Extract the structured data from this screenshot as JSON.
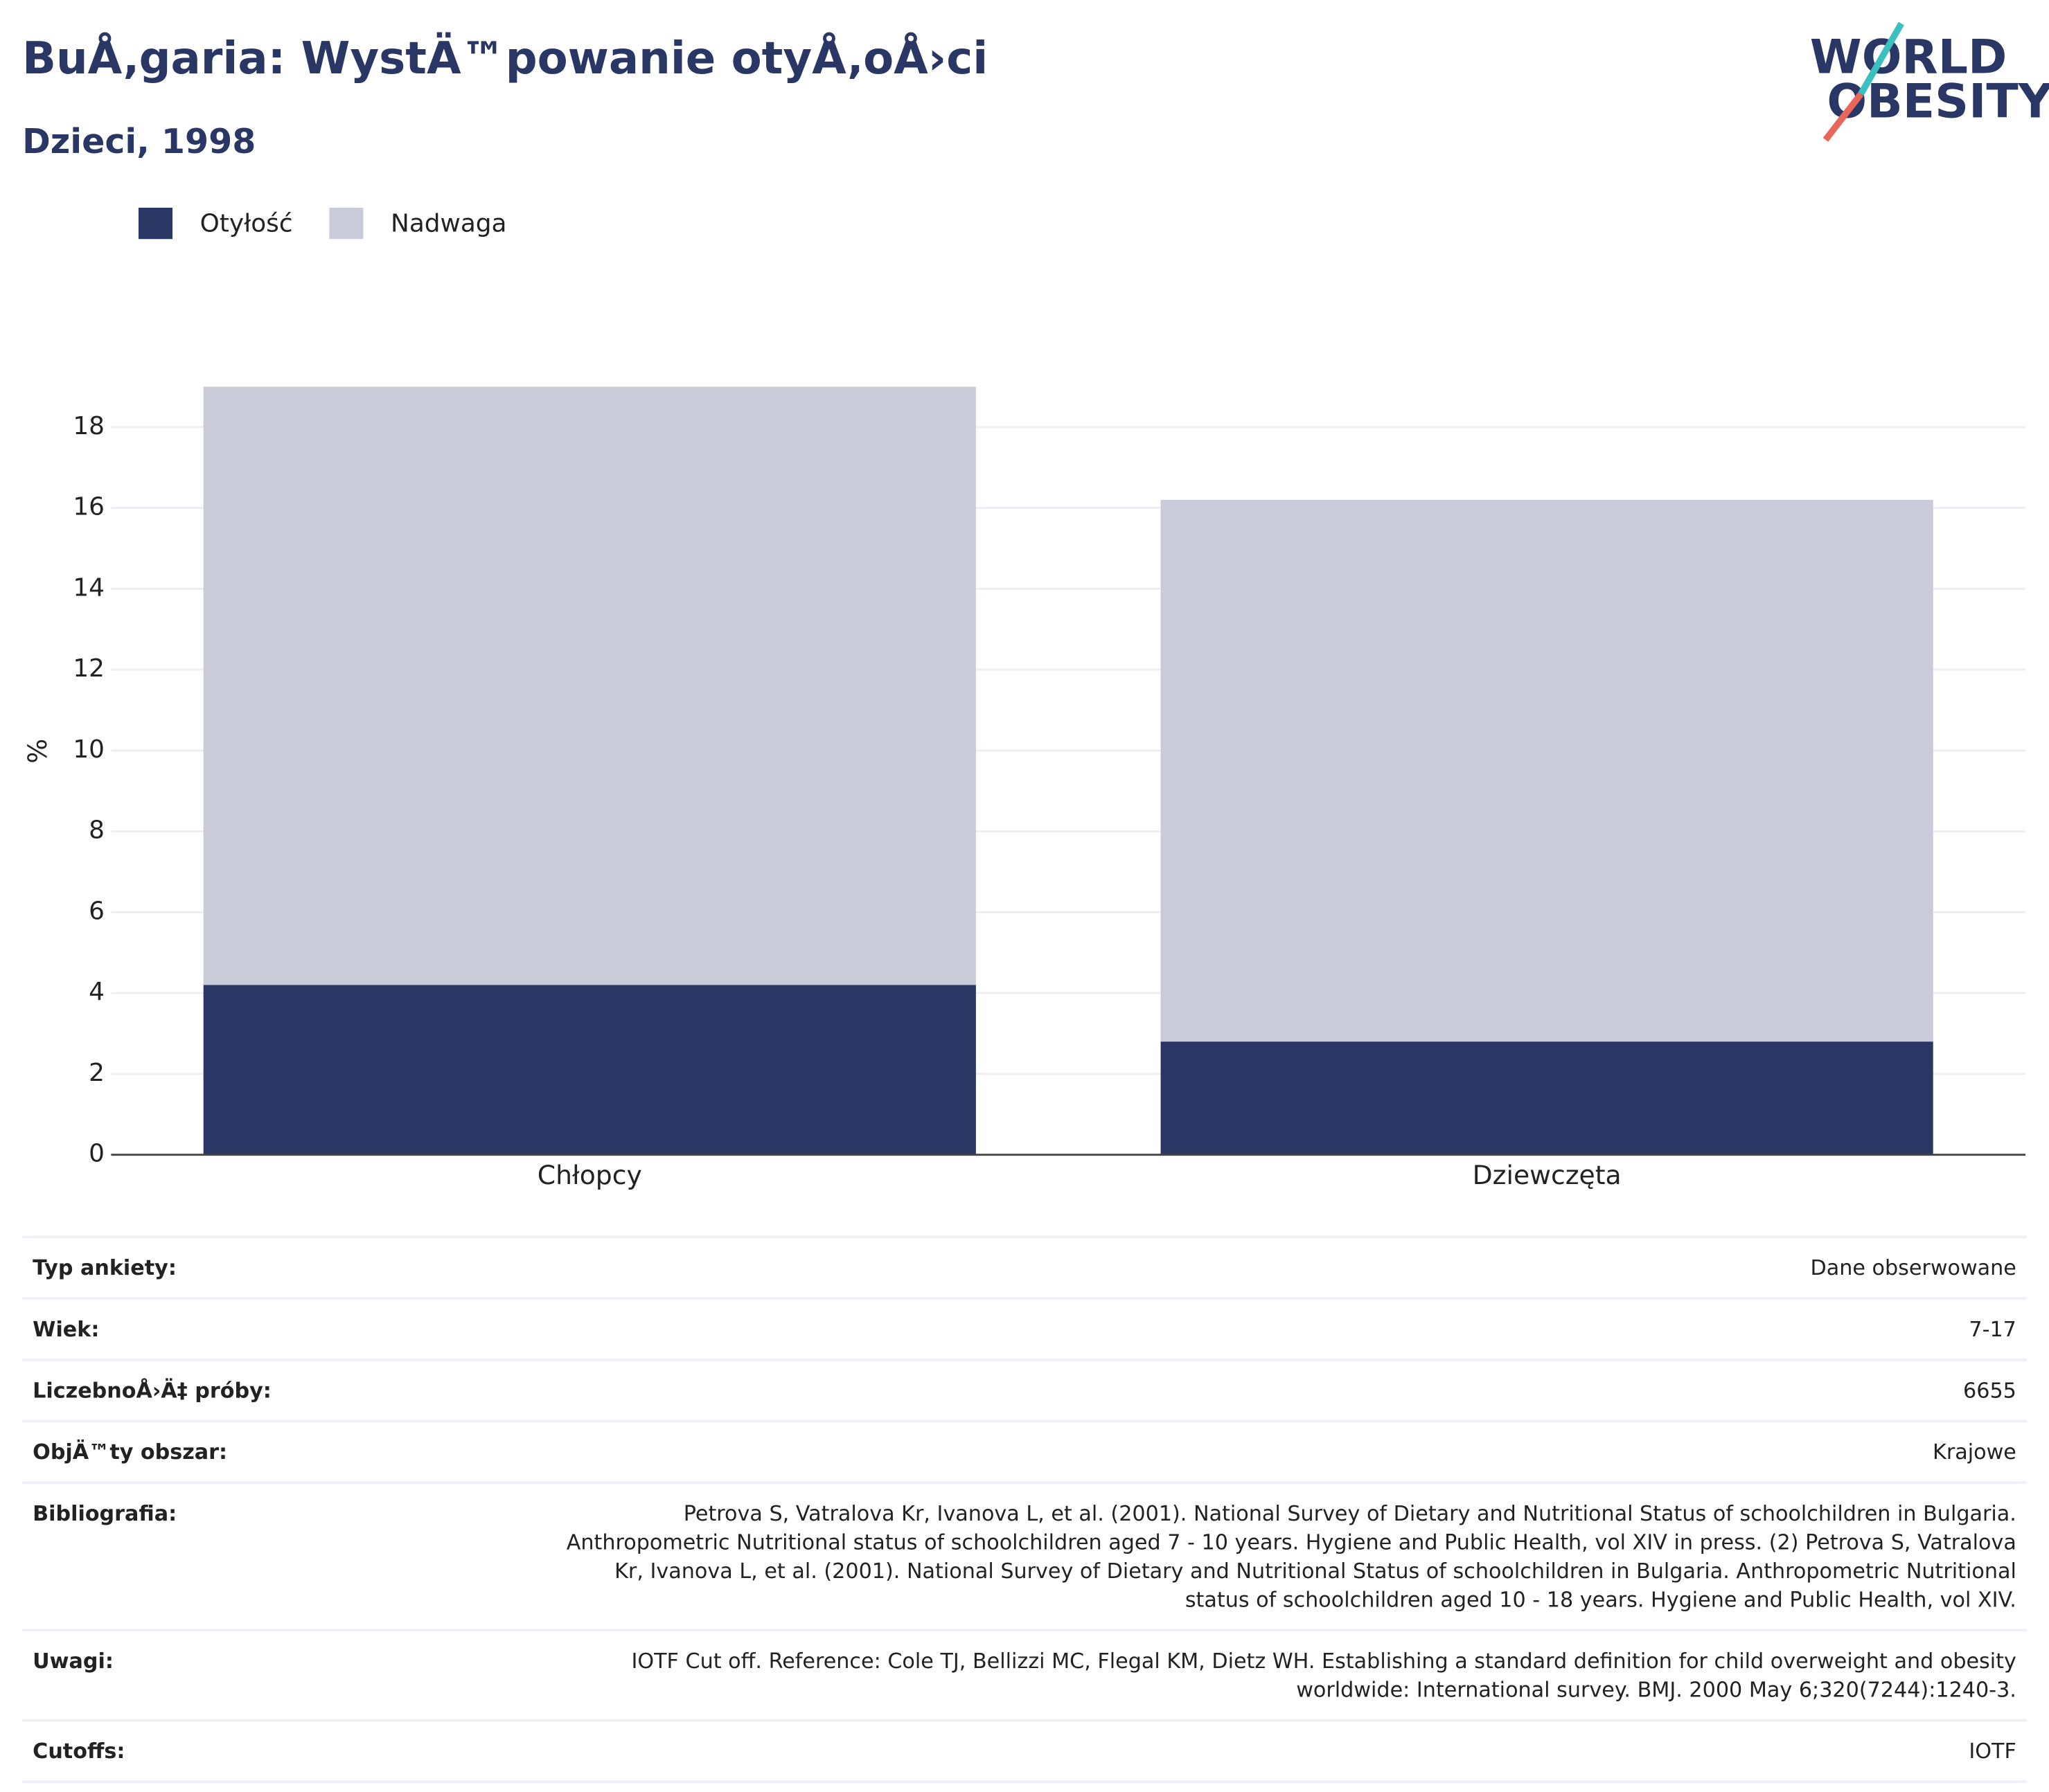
{
  "logo": {
    "line1": "WORLD",
    "line2": "OBESITY"
  },
  "chart_data": {
    "type": "stacked-bar",
    "title": "BuÅ‚garia: WystÄ™powanie otyÅ‚oÅ›ci",
    "subtitle": "Dzieci, 1998",
    "y_label": "%",
    "categories": [
      "Chłopcy",
      "Dziewczęta"
    ],
    "series": [
      {
        "name": "Otyłość",
        "color": "#2a3663",
        "values": [
          4.2,
          2.8
        ]
      },
      {
        "name": "Nadwaga",
        "color": "#c9ccd8",
        "values": [
          14.8,
          13.4
        ]
      }
    ],
    "ylim": [
      0,
      19
    ],
    "yticks": [
      0,
      2,
      4,
      6,
      8,
      10,
      12,
      14,
      16,
      18
    ],
    "grid": true
  },
  "table": {
    "rows": [
      [
        "Typ ankiety:",
        "Dane obserwowane"
      ],
      [
        "Wiek:",
        "7-17"
      ],
      [
        "LiczebnoÅ›Ä‡ próby:",
        "6655"
      ],
      [
        "ObjÄ™ty obszar:",
        "Krajowe"
      ],
      [
        "Bibliografia:",
        "Petrova S, Vatralova Kr, Ivanova L, et al. (2001). National Survey of Dietary and Nutritional Status of schoolchildren in Bulgaria. Anthropometric Nutritional status of schoolchildren aged 7 - 10 years. Hygiene and Public Health, vol XIV in press. (2) Petrova S, Vatralova Kr, Ivanova L, et al. (2001). National Survey of Dietary and Nutritional Status of schoolchildren in Bulgaria. Anthropometric Nutritional status of schoolchildren aged 10 - 18 years. Hygiene and Public Health, vol XIV."
      ],
      [
        "Uwagi:",
        "IOTF Cut off. Reference: Cole TJ, Bellizzi MC, Flegal KM, Dietz WH. Establishing a standard definition for child overweight and obesity worldwide: International survey. BMJ. 2000 May 6;320(7244):1240-3."
      ],
      [
        "Cutoffs:",
        "IOTF"
      ]
    ]
  }
}
